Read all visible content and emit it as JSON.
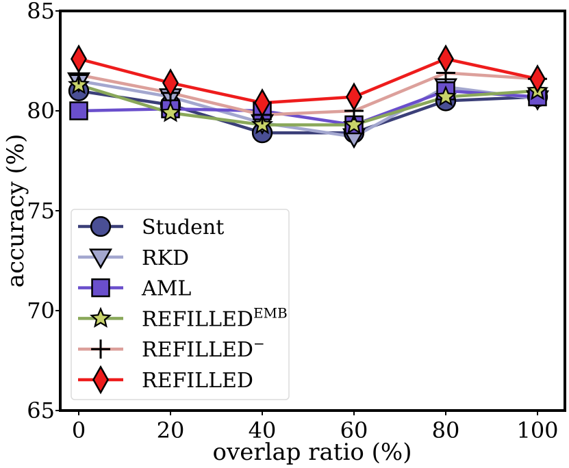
{
  "chart_data": {
    "type": "line",
    "title": "",
    "xlabel": "overlap ratio (%)",
    "ylabel": "accuracy (%)",
    "x": [
      0,
      20,
      40,
      60,
      80,
      100
    ],
    "xticks": [
      "0",
      "20",
      "40",
      "60",
      "80",
      "100"
    ],
    "yticks": [
      65,
      70,
      75,
      80,
      85
    ],
    "xlim": [
      -5,
      105
    ],
    "ylim": [
      65,
      85
    ],
    "grid": false,
    "legend_position": "lower-left",
    "series": [
      {
        "name": "Student",
        "label_base": "Student",
        "label_sup": "",
        "color": "#3b3f78",
        "marker": "circle",
        "marker_fill": "#4a4f95",
        "values": [
          81.0,
          80.3,
          78.9,
          78.9,
          80.5,
          80.7
        ]
      },
      {
        "name": "RKD",
        "label_base": "RKD",
        "label_sup": "",
        "color": "#a3a7cf",
        "marker": "triangle-down",
        "marker_fill": "#a3a7cf",
        "values": [
          81.5,
          80.7,
          79.4,
          78.7,
          81.2,
          80.6
        ]
      },
      {
        "name": "AML",
        "label_base": "AML",
        "label_sup": "",
        "color": "#6a4fcc",
        "marker": "square",
        "marker_fill": "#6a4fcc",
        "values": [
          80.0,
          80.1,
          80.0,
          79.3,
          81.0,
          80.7
        ]
      },
      {
        "name": "REFILLED^EMB",
        "label_base": "REFILLED",
        "label_sup": "EMB",
        "color": "#8aa85a",
        "marker": "star",
        "marker_fill": "#c8d36a",
        "values": [
          81.3,
          79.9,
          79.3,
          79.3,
          80.7,
          81.0
        ]
      },
      {
        "name": "REFILLED^-",
        "label_base": "REFILLED",
        "label_sup": "−",
        "color": "#dca09b",
        "marker": "plus",
        "marker_fill": "#000000",
        "values": [
          81.8,
          80.9,
          79.8,
          80.0,
          81.9,
          81.6
        ]
      },
      {
        "name": "REFILLED",
        "label_base": "REFILLED",
        "label_sup": "",
        "color": "#ee1c1c",
        "marker": "diamond",
        "marker_fill": "#ee1c1c",
        "values": [
          82.6,
          81.4,
          80.4,
          80.7,
          82.6,
          81.6
        ]
      }
    ]
  }
}
